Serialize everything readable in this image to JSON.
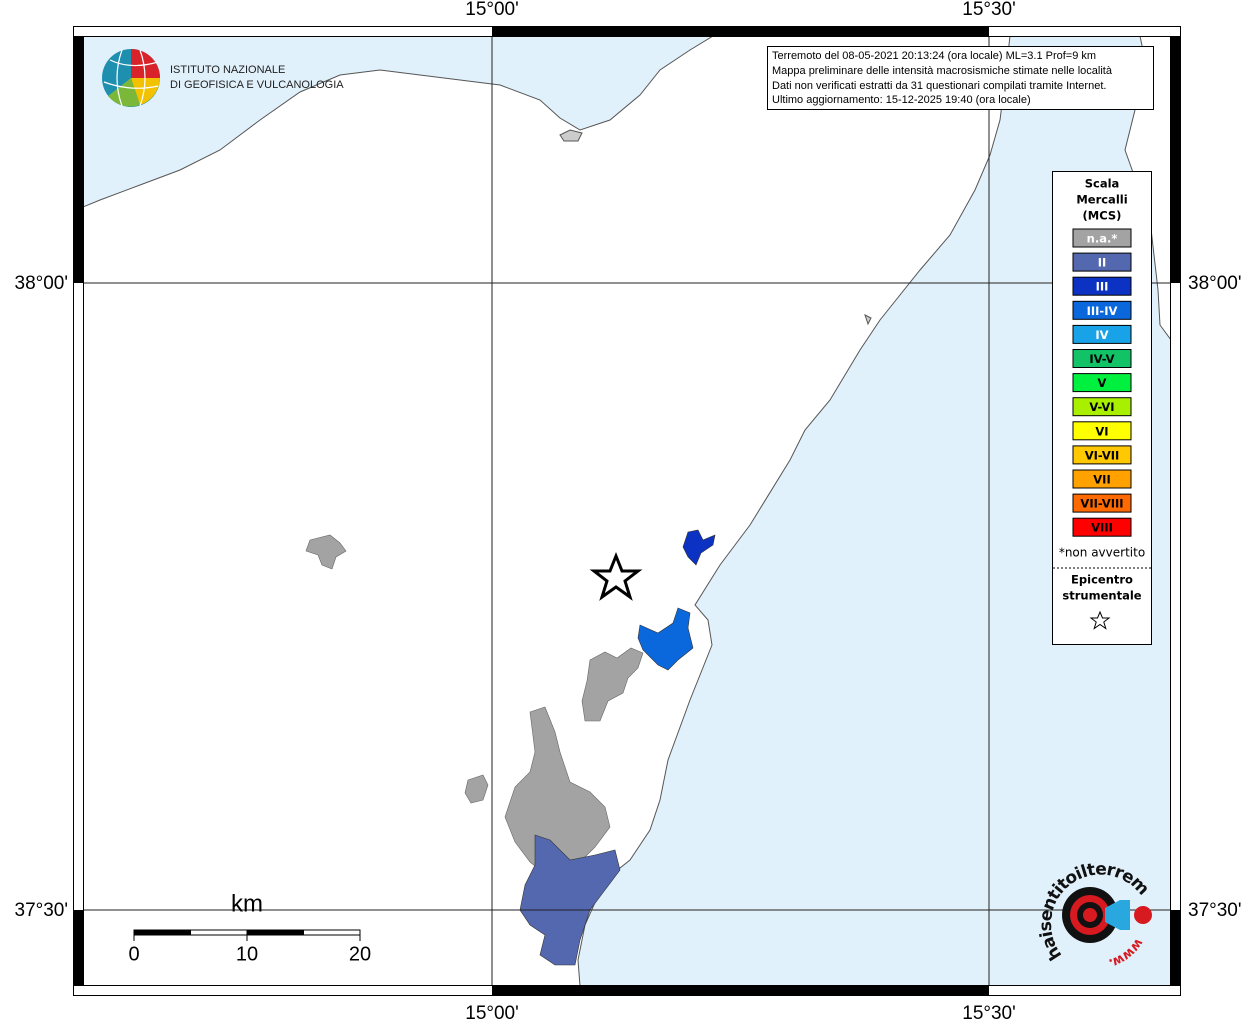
{
  "axis_labels": {
    "lon": [
      "15°00'",
      "15°30'"
    ],
    "lat": [
      "38°00'",
      "37°30'"
    ]
  },
  "institute_logo": {
    "lines": [
      "ISTITUTO NAZIONALE",
      "DI GEOFISICA E VULCANOLOGIA"
    ]
  },
  "info": {
    "lines": [
      "Terremoto del 08-05-2021 20:13:24 (ora locale) ML=3.1 Prof=9 km",
      "Mappa preliminare delle intensità macrosismiche stimate nelle località",
      "Dati non verificati estratti da 31 questionari compilati tramite Internet.",
      "Ultimo aggiornamento: 15-12-2025 19:40 (ora locale)"
    ]
  },
  "legend": {
    "title": [
      "Scala",
      "Mercalli",
      "(MCS)"
    ],
    "items": [
      {
        "label": "n.a.*",
        "color": "#a3a3a3",
        "text_color": "#ffffff"
      },
      {
        "label": "II",
        "color": "#5468b0",
        "text_color": "#ffffff"
      },
      {
        "label": "III",
        "color": "#0c32c4",
        "text_color": "#ffffff"
      },
      {
        "label": "III-IV",
        "color": "#0a68dc",
        "text_color": "#ffffff"
      },
      {
        "label": "IV",
        "color": "#18a2e8",
        "text_color": "#ffffff"
      },
      {
        "label": "IV-V",
        "color": "#12c266",
        "text_color": "#000000"
      },
      {
        "label": "V",
        "color": "#00f040",
        "text_color": "#000000"
      },
      {
        "label": "V-VI",
        "color": "#a8f000",
        "text_color": "#000000"
      },
      {
        "label": "VI",
        "color": "#ffff00",
        "text_color": "#000000"
      },
      {
        "label": "VI-VII",
        "color": "#ffc800",
        "text_color": "#000000"
      },
      {
        "label": "VII",
        "color": "#ffa200",
        "text_color": "#000000"
      },
      {
        "label": "VII-VIII",
        "color": "#ff6a00",
        "text_color": "#000000"
      },
      {
        "label": "VIII",
        "color": "#ff0000",
        "text_color": "#000000"
      }
    ],
    "note": "*non avvertito",
    "epicenter": [
      "Epicentro",
      "strumentale"
    ]
  },
  "scale_bar": {
    "unit": "km",
    "ticks": [
      0,
      10,
      20
    ]
  },
  "site_logo": {
    "text": "haisentitoilterremoto.it",
    "prefix": "www."
  }
}
